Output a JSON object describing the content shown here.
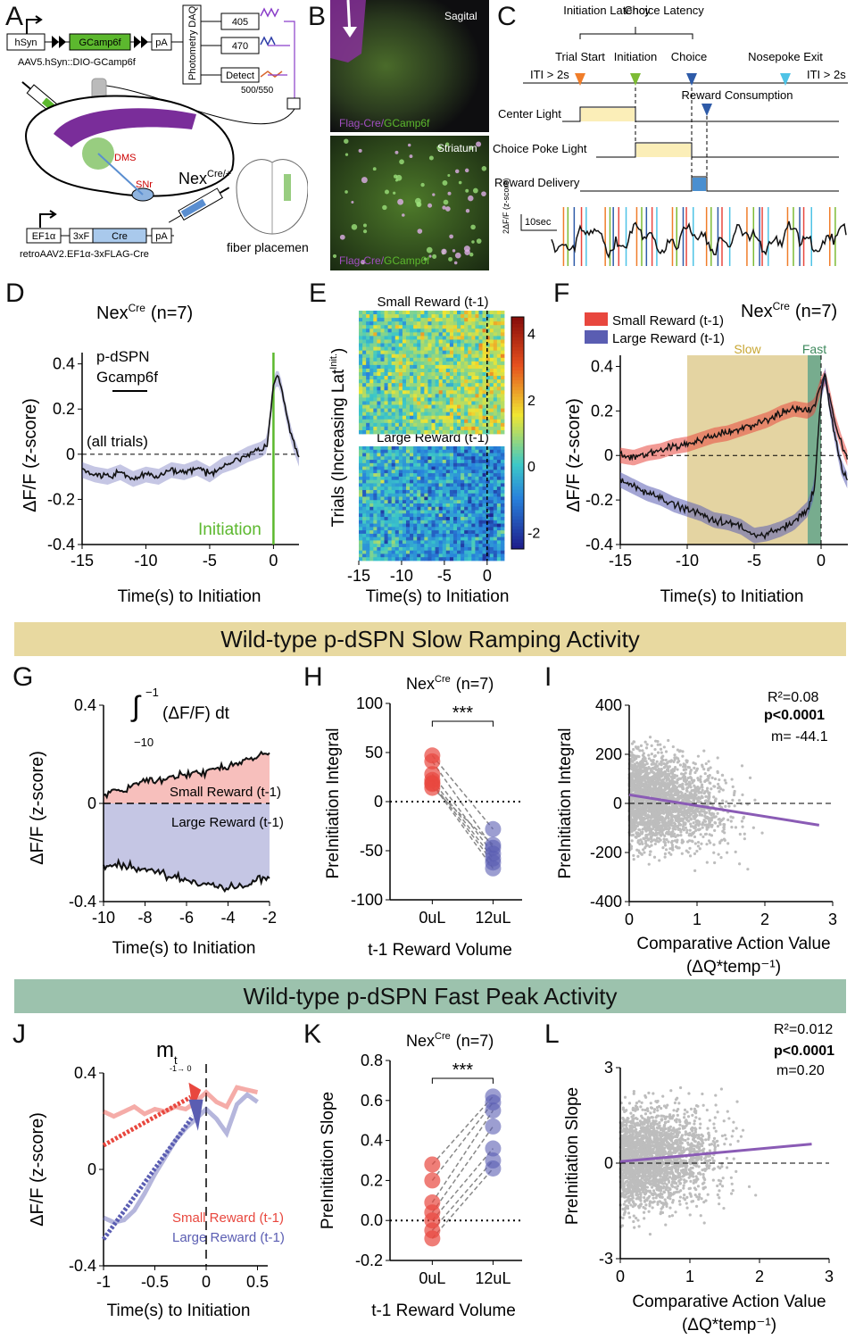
{
  "panels": {
    "A": "A",
    "B": "B",
    "C": "C",
    "D": "D",
    "E": "E",
    "F": "F",
    "G": "G",
    "H": "H",
    "I": "I",
    "J": "J",
    "K": "K",
    "L": "L"
  },
  "banners": {
    "slow": "Wild-type p-dSPN Slow Ramping Activity",
    "fast": "Wild-type p-dSPN Fast Peak Activity",
    "slow_color": "#e8d9a0",
    "fast_color": "#9cc2ad"
  },
  "colors": {
    "small": "#e8473e",
    "large": "#5a5db2",
    "green": "#5cb82e",
    "slow_shade": "#d9c27a",
    "fast_shade": "#5f9e7a",
    "scatter": "#bdbdbd",
    "fit": "#8a5bb5"
  },
  "panelA": {
    "construct1": [
      "hSyn",
      "GCamp6f",
      "pA"
    ],
    "virus1": "AAV5.hSyn::DIO-GCamp6f",
    "daq": "Photometry DAQ",
    "led1": "405",
    "led2": "470",
    "detect": "Detect",
    "filter": "500/550",
    "dms": "DMS",
    "snr": "SNr",
    "mouse": "Nex",
    "mouse_sup": "Cre/+",
    "construct2": [
      "EF1α",
      "3xF",
      "Cre",
      "pA"
    ],
    "virus2": "retroAAV2.EF1α-3xFLAG-Cre",
    "fiber": "fiber placement"
  },
  "panelB": {
    "top": "Sagital",
    "bottom": "Striatum",
    "legend_flag": "Flag-Cre",
    "legend_sep": "/",
    "legend_gcamp": "GCamp6f"
  },
  "panelC": {
    "initiation_latency": "Initiation Latency",
    "choice_latency": "Choice Latency",
    "iti_left": "ITI > 2s",
    "iti_right": "ITI > 2s",
    "trial_start": "Trial Start",
    "initiation": "Initiation",
    "choice": "Choice",
    "nosepoke_exit": "Nosepoke Exit",
    "reward_consumption": "Reward Consumption",
    "center_light": "Center Light",
    "choice_poke_light": "Choice Poke Light",
    "reward_delivery": "Reward Delivery",
    "scale_y": "2ΔF/F (z-score)",
    "scale_x": "10sec"
  },
  "chart_data": [
    {
      "panel": "D",
      "type": "line",
      "title": "Nex",
      "title_sup": "Cre",
      "title_n": "(n=7)",
      "label1": "p-dSPN",
      "label2": "Gcamp6f",
      "note": "(all trials)",
      "marker": "Initiation",
      "xlabel": "Time(s) to Initiation",
      "ylabel": "ΔF/F (z-score)",
      "xlim": [
        -15,
        2
      ],
      "ylim": [
        -0.4,
        0.45
      ],
      "xticks": [
        "-15",
        "-10",
        "-5",
        "0"
      ],
      "yticks": [
        "0.4",
        "0.2",
        "0",
        "-0.2",
        "-0.4"
      ],
      "series": [
        {
          "name": "all trials",
          "x": [
            -15,
            -14,
            -13,
            -12,
            -11,
            -10,
            -9,
            -8,
            -7,
            -6,
            -5,
            -4,
            -3,
            -2,
            -1,
            -0.5,
            0,
            0.3,
            0.6,
            1,
            1.5,
            2
          ],
          "values": [
            -0.07,
            -0.09,
            -0.1,
            -0.08,
            -0.11,
            -0.09,
            -0.1,
            -0.07,
            -0.08,
            -0.06,
            -0.09,
            -0.05,
            -0.03,
            0.0,
            0.02,
            0.04,
            0.3,
            0.35,
            0.3,
            0.18,
            0.06,
            -0.02
          ]
        }
      ]
    },
    {
      "panel": "E",
      "type": "heatmap",
      "title_small": "Small Reward (t-1)",
      "title_large": "Large Reward (t-1)",
      "ylabel": "Trials (Increasing Lat",
      "ylabel_sup": "Init.",
      "ylabel_end": ")",
      "xlabel": "Time(s) to Initiation",
      "xticks": [
        "-15",
        "-10",
        "-5",
        "0"
      ],
      "colorbar_ticks": [
        "4",
        "2",
        "0",
        "-2"
      ],
      "zlim": [
        -2.5,
        4.5
      ]
    },
    {
      "panel": "F",
      "type": "line",
      "title": "Nex",
      "title_sup": "Cre",
      "title_n": "(n=7)",
      "slow_label": "Slow",
      "fast_label": "Fast",
      "xlabel": "Time(s) to Initiation",
      "ylabel": "ΔF/F (z-score)",
      "xlim": [
        -15,
        2
      ],
      "ylim": [
        -0.4,
        0.45
      ],
      "xticks": [
        "-15",
        "-10",
        "-5",
        "0"
      ],
      "yticks": [
        "0.4",
        "0.2",
        "0",
        "-0.2",
        "-0.4"
      ],
      "series": [
        {
          "name": "Small Reward (t-1)",
          "x": [
            -15,
            -14,
            -13,
            -12,
            -11,
            -10,
            -9,
            -8,
            -7,
            -6,
            -5,
            -4,
            -3,
            -2,
            -1,
            -0.5,
            0,
            0.3,
            0.7,
            1,
            1.5,
            2
          ],
          "values": [
            0.0,
            -0.01,
            0.01,
            0.02,
            0.04,
            0.05,
            0.07,
            0.09,
            0.1,
            0.12,
            0.14,
            0.16,
            0.19,
            0.21,
            0.2,
            0.22,
            0.32,
            0.35,
            0.25,
            0.16,
            0.06,
            -0.02
          ]
        },
        {
          "name": "Large Reward (t-1)",
          "x": [
            -15,
            -14,
            -13,
            -12,
            -11,
            -10,
            -9,
            -8,
            -7,
            -6,
            -5,
            -4,
            -3,
            -2,
            -1,
            -0.5,
            0,
            0.3,
            0.7,
            1,
            1.5,
            2
          ],
          "values": [
            -0.11,
            -0.14,
            -0.17,
            -0.19,
            -0.22,
            -0.24,
            -0.26,
            -0.29,
            -0.3,
            -0.32,
            -0.36,
            -0.35,
            -0.33,
            -0.3,
            -0.24,
            -0.15,
            0.28,
            0.36,
            0.2,
            0.1,
            -0.05,
            -0.12
          ]
        }
      ]
    },
    {
      "panel": "G",
      "type": "area",
      "integral": "(ΔF/F) dt",
      "upper": "−1",
      "lower": "−10",
      "xlabel": "Time(s) to Initiation",
      "ylabel": "ΔF/F (z-score)",
      "xlim": [
        -10,
        -2
      ],
      "ylim": [
        -0.4,
        0.4
      ],
      "xticks": [
        "-10",
        "-8",
        "-6",
        "-4",
        "-2"
      ],
      "yticks": [
        "0.4",
        "0",
        "-0.4"
      ],
      "series": [
        {
          "name": "Small Reward (t-1)",
          "x": [
            -10,
            -9,
            -8,
            -7,
            -6,
            -5,
            -4,
            -3,
            -2
          ],
          "values": [
            0.03,
            0.06,
            0.09,
            0.1,
            0.12,
            0.13,
            0.15,
            0.18,
            0.2
          ]
        },
        {
          "name": "Large Reward (t-1)",
          "x": [
            -10,
            -9,
            -8,
            -7,
            -6,
            -5,
            -4,
            -3,
            -2
          ],
          "values": [
            -0.26,
            -0.25,
            -0.27,
            -0.29,
            -0.31,
            -0.33,
            -0.35,
            -0.33,
            -0.3
          ]
        }
      ]
    },
    {
      "panel": "H",
      "type": "scatter",
      "title": "Nex",
      "title_sup": "Cre",
      "title_n": "(n=7)",
      "sig": "***",
      "xlabel": "t-1 Reward Volume",
      "ylabel": "PreInitiation Integral",
      "categories": [
        "0uL",
        "12uL"
      ],
      "ylim": [
        -100,
        100
      ],
      "yticks": [
        "100",
        "50",
        "0",
        "-50",
        "-100"
      ],
      "series": [
        {
          "name": "0uL",
          "values": [
            47,
            41,
            28,
            22,
            19,
            14,
            18
          ]
        },
        {
          "name": "12uL",
          "values": [
            -28,
            -47,
            -53,
            -58,
            -62,
            -44,
            -68
          ]
        }
      ]
    },
    {
      "panel": "I",
      "type": "scatter",
      "r2": "R²=0.08",
      "p": "p<0.0001",
      "m": "m= -44.1",
      "xlabel": "Comparative Action Value",
      "xlabel2": "(ΔQ*temp⁻¹)",
      "ylabel": "PreInitiation Integral",
      "xlim": [
        0,
        3
      ],
      "ylim": [
        -400,
        400
      ],
      "xticks": [
        "0",
        "1",
        "2",
        "3"
      ],
      "yticks": [
        "400",
        "200",
        "0",
        "-200",
        "-400"
      ],
      "fit": {
        "slope": -44.1,
        "intercept": 35,
        "x_range": [
          0,
          2.8
        ]
      }
    },
    {
      "panel": "J",
      "type": "line",
      "m_label": "m",
      "m_sub": "t",
      "m_arrow": "-1→ 0",
      "xlabel": "Time(s) to Initiation",
      "ylabel": "ΔF/F (z-score)",
      "xlim": [
        -1,
        0.6
      ],
      "ylim": [
        -0.4,
        0.4
      ],
      "xticks": [
        "-1",
        "-0.5",
        "0",
        "0.5"
      ],
      "yticks": [
        "0.4",
        "0",
        "-0.4"
      ],
      "series": [
        {
          "name": "Small Reward (t-1)",
          "x": [
            -1,
            -0.9,
            -0.8,
            -0.7,
            -0.6,
            -0.5,
            -0.4,
            -0.3,
            -0.2,
            -0.1,
            0,
            0.1,
            0.2,
            0.3,
            0.4,
            0.5
          ],
          "values": [
            0.24,
            0.22,
            0.24,
            0.26,
            0.23,
            0.25,
            0.24,
            0.26,
            0.25,
            0.28,
            0.32,
            0.28,
            0.26,
            0.34,
            0.33,
            0.32
          ]
        },
        {
          "name": "Large Reward (t-1)",
          "x": [
            -1,
            -0.9,
            -0.8,
            -0.7,
            -0.6,
            -0.5,
            -0.4,
            -0.3,
            -0.2,
            -0.1,
            0,
            0.1,
            0.2,
            0.3,
            0.4,
            0.5
          ],
          "values": [
            -0.2,
            -0.22,
            -0.21,
            -0.17,
            -0.1,
            -0.02,
            0.05,
            0.12,
            0.17,
            0.21,
            0.25,
            0.21,
            0.15,
            0.27,
            0.31,
            0.28
          ]
        }
      ]
    },
    {
      "panel": "K",
      "type": "scatter",
      "title": "Nex",
      "title_sup": "Cre",
      "title_n": "(n=7)",
      "sig": "***",
      "xlabel": "t-1 Reward Volume",
      "ylabel": "PreInitiation Slope",
      "categories": [
        "0uL",
        "12uL"
      ],
      "ylim": [
        -0.2,
        0.8
      ],
      "yticks": [
        "0.8",
        "0.6",
        "0.4",
        "0.2",
        "0.0",
        "-0.2"
      ],
      "series": [
        {
          "name": "0uL",
          "values": [
            0.28,
            0.2,
            0.09,
            0.04,
            0.0,
            -0.05,
            -0.09
          ]
        },
        {
          "name": "12uL",
          "values": [
            0.62,
            0.59,
            0.55,
            0.47,
            0.36,
            0.3,
            0.26
          ]
        }
      ]
    },
    {
      "panel": "L",
      "type": "scatter",
      "r2": "R²=0.012",
      "p": "p<0.0001",
      "m": "m=0.20",
      "xlabel": "Comparative Action Value",
      "xlabel2": "(ΔQ*temp⁻¹)",
      "ylabel": "PreInitiation Slope",
      "xlim": [
        0,
        3
      ],
      "ylim": [
        -3,
        3
      ],
      "xticks": [
        "0",
        "1",
        "2",
        "3"
      ],
      "yticks": [
        "3",
        "0",
        "-3"
      ],
      "fit": {
        "slope": 0.2,
        "intercept": 0.05,
        "x_range": [
          0,
          2.75
        ]
      }
    }
  ]
}
